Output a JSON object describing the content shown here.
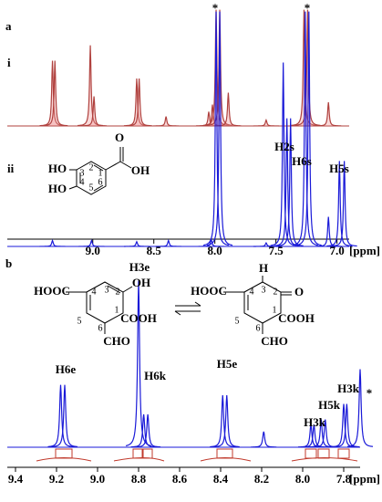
{
  "chart_data": [
    {
      "type": "nmr",
      "panel_label": "a",
      "x_label": "[ppm]",
      "xlim": [
        9.7,
        6.9
      ],
      "xticks": [
        {
          "value": 9,
          "label": "9.0"
        },
        8.5,
        {
          "value": 8,
          "label": "8.0"
        },
        7.5,
        {
          "value": 7,
          "label": "7.0"
        }
      ],
      "series": [
        {
          "name": "i",
          "color": "#b0413e",
          "x": [
            9.33,
            9.31,
            9.02,
            8.99,
            8.64,
            8.62,
            8.4,
            8.05,
            8.02,
            7.99,
            7.96,
            7.89,
            7.58,
            7.27,
            7.24,
            7.07
          ],
          "values": [
            55,
            55,
            68,
            25,
            40,
            40,
            8,
            12,
            18,
            98,
            98,
            28,
            5,
            98,
            98,
            20
          ]
        },
        {
          "name": "ii",
          "color": "#1a1ad8",
          "x": [
            9.33,
            9.01,
            8.64,
            8.38,
            8.03,
            7.99,
            7.96,
            7.58,
            7.44,
            7.41,
            7.38,
            7.26,
            7.23,
            7.07,
            6.98,
            6.94
          ],
          "values": [
            5,
            5,
            4,
            5,
            6,
            198,
            198,
            3,
            155,
            108,
            108,
            198,
            198,
            25,
            72,
            72
          ]
        }
      ],
      "annotations": [
        "*",
        "*",
        "H2s",
        "H6s",
        "H5s"
      ],
      "structure_labels": [
        "O",
        "OH",
        "HO",
        "HO",
        "1",
        "2",
        "3",
        "4",
        "5",
        "6"
      ]
    },
    {
      "type": "nmr",
      "panel_label": "b",
      "x_label": "[ppm]",
      "xlim": [
        9.44,
        7.72
      ],
      "xticks": [
        9.4,
        9.2,
        {
          "value": 9,
          "label": "9.0"
        },
        8.8,
        8.6,
        8.4,
        8.2,
        {
          "value": 8,
          "label": "8.0"
        },
        7.8
      ],
      "series": [
        {
          "name": "b",
          "color": "#1a1ad8",
          "x": [
            9.18,
            9.16,
            8.8,
            8.775,
            8.755,
            8.39,
            8.37,
            8.19,
            7.96,
            7.945,
            7.91,
            7.89,
            7.8,
            7.785,
            7.72
          ],
          "values": [
            36,
            36,
            96,
            19,
            19,
            30,
            30,
            9,
            13,
            13,
            16,
            16,
            25,
            25,
            45
          ]
        }
      ],
      "annotations": [
        "H6e",
        "H3e",
        "H6k",
        "H5e",
        "H3k",
        "H5k",
        "H3k",
        "*"
      ],
      "structure_labels": [
        "HOOC",
        "4",
        "3",
        "2",
        "OH",
        "5",
        "1",
        "COOH",
        "6",
        "CHO",
        "H",
        "HOOC",
        "4",
        "3",
        "2",
        "O",
        "5",
        "1",
        "COOH",
        "6",
        "CHO"
      ]
    }
  ]
}
